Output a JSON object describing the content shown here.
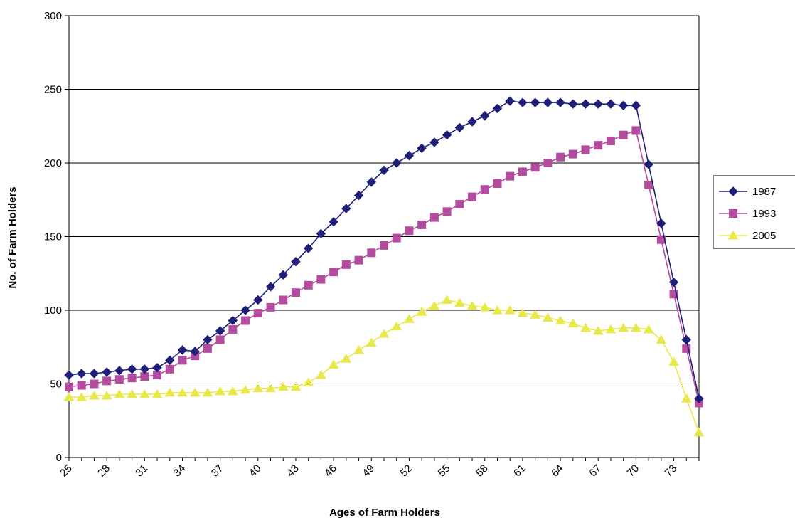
{
  "chart_data": {
    "type": "line",
    "title": "",
    "xlabel": "Ages of Farm Holders",
    "ylabel": "No. of Farm Holders",
    "x": [
      25,
      26,
      27,
      28,
      29,
      30,
      31,
      32,
      33,
      34,
      35,
      36,
      37,
      38,
      39,
      40,
      41,
      42,
      43,
      44,
      45,
      46,
      47,
      48,
      49,
      50,
      51,
      52,
      53,
      54,
      55,
      56,
      57,
      58,
      59,
      60,
      61,
      62,
      63,
      64,
      65,
      66,
      67,
      68,
      69,
      70,
      71,
      72,
      73,
      74,
      75
    ],
    "x_tick_labels": [
      "25",
      "28",
      "31",
      "34",
      "37",
      "40",
      "43",
      "46",
      "49",
      "52",
      "55",
      "58",
      "61",
      "64",
      "67",
      "70",
      "73"
    ],
    "ylim": [
      0,
      300
    ],
    "y_ticks": [
      0,
      50,
      100,
      150,
      200,
      250,
      300
    ],
    "grid": "horizontal",
    "legend_position": "right",
    "series": [
      {
        "name": "1987",
        "color": "#1F1F7A",
        "marker": "diamond",
        "values": [
          56,
          57,
          57,
          58,
          59,
          60,
          60,
          61,
          66,
          73,
          72,
          80,
          86,
          93,
          100,
          107,
          116,
          124,
          133,
          142,
          152,
          160,
          169,
          178,
          187,
          195,
          200,
          205,
          210,
          214,
          219,
          224,
          228,
          232,
          237,
          242,
          241,
          241,
          241,
          241,
          240,
          240,
          240,
          240,
          239,
          239,
          199,
          159,
          119,
          80,
          40
        ]
      },
      {
        "name": "1993",
        "color": "#B34C9E",
        "marker": "square",
        "values": [
          48,
          49,
          50,
          52,
          53,
          54,
          55,
          56,
          60,
          66,
          69,
          74,
          80,
          87,
          93,
          98,
          102,
          107,
          112,
          117,
          121,
          126,
          131,
          134,
          139,
          144,
          149,
          154,
          158,
          163,
          167,
          172,
          177,
          182,
          186,
          191,
          194,
          197,
          200,
          204,
          206,
          209,
          212,
          215,
          219,
          222,
          185,
          148,
          111,
          74,
          37
        ]
      },
      {
        "name": "2005",
        "color": "#E8E84A",
        "marker": "triangle",
        "values": [
          41,
          41,
          42,
          42,
          43,
          43,
          43,
          43,
          44,
          44,
          44,
          44,
          45,
          45,
          46,
          47,
          47,
          48,
          48,
          51,
          56,
          63,
          67,
          73,
          78,
          84,
          89,
          94,
          99,
          103,
          107,
          105,
          103,
          102,
          100,
          100,
          98,
          97,
          95,
          93,
          91,
          88,
          86,
          87,
          88,
          88,
          87,
          80,
          65,
          40,
          17
        ]
      }
    ]
  }
}
